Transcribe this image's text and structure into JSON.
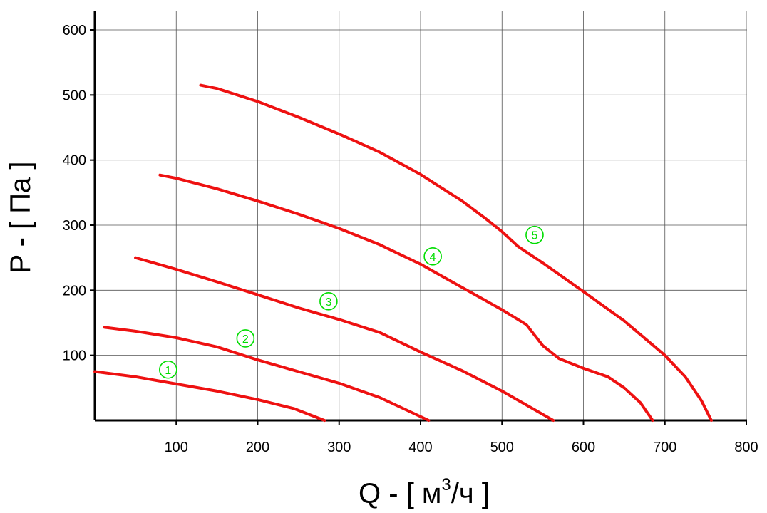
{
  "chart_data": {
    "type": "line",
    "xlabel": "Q - [ м³/ч ]",
    "xlabel_main": "Q - [ м",
    "xlabel_sup": "3",
    "xlabel_end": "/ч ]",
    "ylabel": "P - [ Па ]",
    "xlim": [
      0,
      800
    ],
    "ylim": [
      0,
      600
    ],
    "x_ticks": [
      100,
      200,
      300,
      400,
      500,
      600,
      700,
      800
    ],
    "y_ticks": [
      100,
      200,
      300,
      400,
      500,
      600
    ],
    "grid": true,
    "line_color": "#ee1111",
    "marker_color": "#00dd00",
    "series": [
      {
        "marker": "①",
        "label_at": [
          90,
          78
        ],
        "points": [
          [
            0,
            75
          ],
          [
            50,
            67
          ],
          [
            100,
            56
          ],
          [
            150,
            45
          ],
          [
            200,
            32
          ],
          [
            245,
            18
          ],
          [
            282,
            0
          ]
        ]
      },
      {
        "marker": "②",
        "label_at": [
          185,
          126
        ],
        "points": [
          [
            12,
            143
          ],
          [
            50,
            137
          ],
          [
            100,
            127
          ],
          [
            150,
            113
          ],
          [
            200,
            93
          ],
          [
            250,
            75
          ],
          [
            300,
            57
          ],
          [
            350,
            35
          ],
          [
            410,
            0
          ]
        ]
      },
      {
        "marker": "③",
        "label_at": [
          287,
          183
        ],
        "points": [
          [
            50,
            250
          ],
          [
            100,
            232
          ],
          [
            150,
            213
          ],
          [
            200,
            193
          ],
          [
            250,
            173
          ],
          [
            300,
            155
          ],
          [
            350,
            135
          ],
          [
            400,
            105
          ],
          [
            450,
            77
          ],
          [
            500,
            45
          ],
          [
            563,
            0
          ]
        ]
      },
      {
        "marker": "④",
        "label_at": [
          415,
          252
        ],
        "points": [
          [
            80,
            377
          ],
          [
            100,
            372
          ],
          [
            150,
            356
          ],
          [
            200,
            337
          ],
          [
            250,
            317
          ],
          [
            300,
            295
          ],
          [
            350,
            270
          ],
          [
            400,
            240
          ],
          [
            450,
            205
          ],
          [
            500,
            170
          ],
          [
            530,
            147
          ],
          [
            550,
            115
          ],
          [
            570,
            95
          ],
          [
            600,
            80
          ],
          [
            630,
            67
          ],
          [
            650,
            50
          ],
          [
            670,
            27
          ],
          [
            685,
            0
          ]
        ]
      },
      {
        "marker": "⑤",
        "label_at": [
          540,
          285
        ],
        "points": [
          [
            130,
            515
          ],
          [
            150,
            510
          ],
          [
            200,
            490
          ],
          [
            250,
            466
          ],
          [
            300,
            440
          ],
          [
            350,
            412
          ],
          [
            400,
            378
          ],
          [
            450,
            338
          ],
          [
            480,
            310
          ],
          [
            500,
            290
          ],
          [
            520,
            267
          ],
          [
            550,
            242
          ],
          [
            600,
            198
          ],
          [
            650,
            153
          ],
          [
            700,
            100
          ],
          [
            725,
            67
          ],
          [
            745,
            30
          ],
          [
            757,
            0
          ]
        ]
      }
    ]
  }
}
